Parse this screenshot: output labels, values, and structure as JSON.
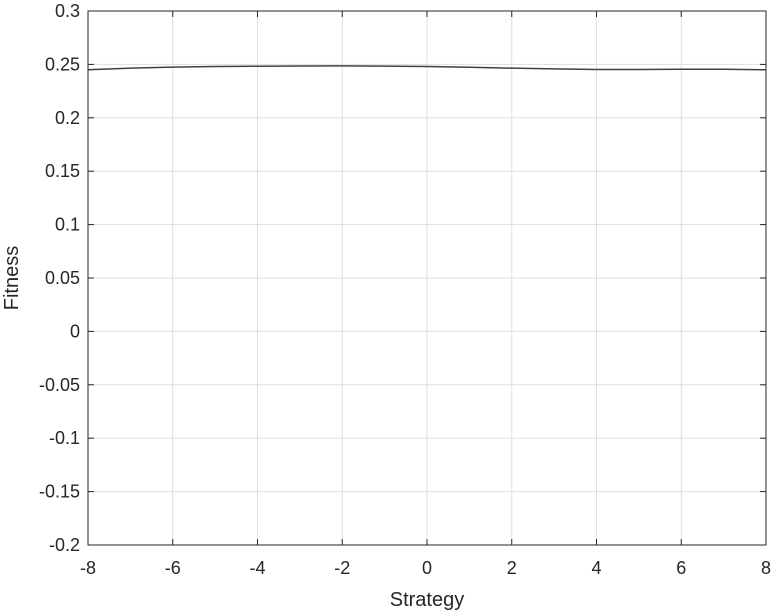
{
  "chart_data": {
    "type": "line",
    "title": "",
    "xlabel": "Strategy",
    "ylabel": "Fitness",
    "xlim": [
      -8,
      8
    ],
    "ylim": [
      -0.2,
      0.3
    ],
    "xticks": [
      -8,
      -6,
      -4,
      -2,
      0,
      2,
      4,
      6,
      8
    ],
    "yticks": [
      -0.2,
      -0.15,
      -0.1,
      -0.05,
      0,
      0.05,
      0.1,
      0.15,
      0.2,
      0.25,
      0.3
    ],
    "xtick_labels": [
      "-8",
      "-6",
      "-4",
      "-2",
      "0",
      "2",
      "4",
      "6",
      "8"
    ],
    "ytick_labels": [
      "-0.2",
      "-0.15",
      "-0.1",
      "-0.05",
      "0",
      "0.05",
      "0.1",
      "0.15",
      "0.2",
      "0.25",
      "0.3"
    ],
    "grid": true,
    "line_color": "#404040",
    "grid_color": "#dfdfdf",
    "series": [
      {
        "x": [
          -8,
          -7,
          -6,
          -5,
          -4,
          -3,
          -2,
          -1,
          0,
          1,
          2,
          3,
          4,
          5,
          6,
          7,
          8
        ],
        "y": [
          0.245,
          0.2465,
          0.2475,
          0.248,
          0.2483,
          0.2485,
          0.2486,
          0.2484,
          0.248,
          0.2473,
          0.2465,
          0.2458,
          0.2452,
          0.2452,
          0.2455,
          0.2455,
          0.245
        ]
      }
    ]
  }
}
